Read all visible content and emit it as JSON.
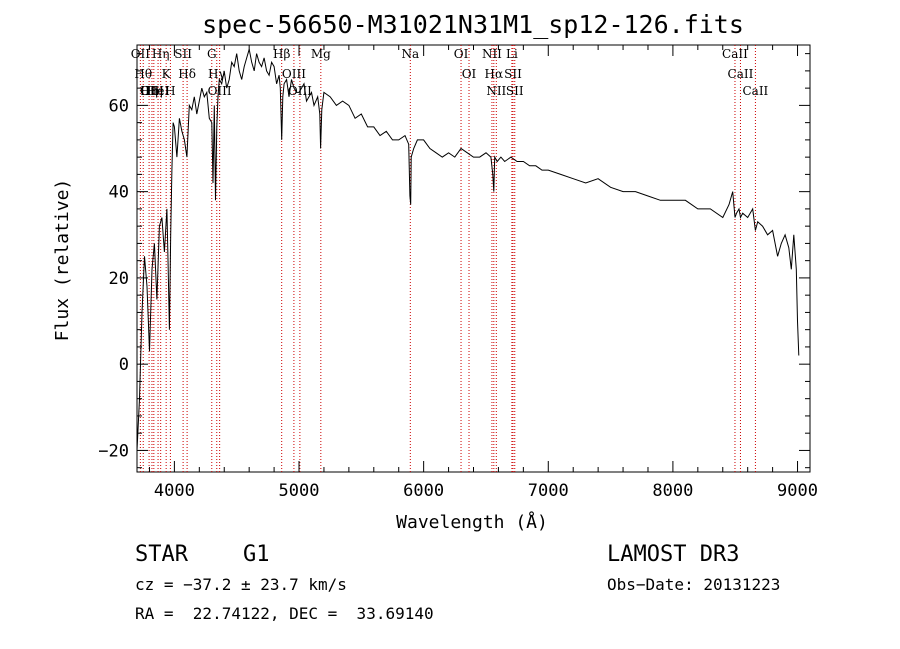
{
  "chart_data": {
    "type": "line",
    "title": "spec-56650-M31021N31M1_sp12-126.fits",
    "xlabel": "Wavelength (Å)",
    "ylabel": "Flux (relative)",
    "xlim": [
      3700,
      9100
    ],
    "ylim": [
      -25,
      74
    ],
    "xticks": [
      4000,
      5000,
      6000,
      7000,
      8000,
      9000
    ],
    "yticks": [
      -20,
      0,
      20,
      40,
      60
    ],
    "grid": false,
    "series": [
      {
        "x": [
          3700,
          3720,
          3740,
          3760,
          3780,
          3800,
          3820,
          3840,
          3860,
          3880,
          3900,
          3920,
          3940,
          3950,
          3960,
          3970,
          3980,
          3990,
          4000,
          4020,
          4040,
          4060,
          4080,
          4100,
          4120,
          4140,
          4160,
          4180,
          4200,
          4220,
          4240,
          4260,
          4280,
          4300,
          4310,
          4320,
          4330,
          4340,
          4350,
          4360,
          4380,
          4400,
          4420,
          4440,
          4460,
          4480,
          4500,
          4520,
          4540,
          4560,
          4580,
          4600,
          4620,
          4640,
          4660,
          4680,
          4700,
          4720,
          4740,
          4760,
          4780,
          4800,
          4820,
          4840,
          4850,
          4861,
          4870,
          4880,
          4900,
          4920,
          4940,
          4960,
          4980,
          5000,
          5020,
          5040,
          5060,
          5080,
          5100,
          5120,
          5150,
          5167,
          5173,
          5183,
          5200,
          5250,
          5300,
          5350,
          5400,
          5450,
          5500,
          5550,
          5600,
          5650,
          5700,
          5750,
          5800,
          5850,
          5880,
          5890,
          5896,
          5900,
          5920,
          5950,
          6000,
          6050,
          6100,
          6150,
          6200,
          6250,
          6300,
          6350,
          6400,
          6450,
          6500,
          6540,
          6555,
          6563,
          6570,
          6590,
          6620,
          6650,
          6700,
          6750,
          6800,
          6850,
          6900,
          6950,
          7000,
          7100,
          7200,
          7300,
          7400,
          7500,
          7600,
          7700,
          7800,
          7900,
          8000,
          8100,
          8200,
          8300,
          8400,
          8450,
          8480,
          8498,
          8510,
          8530,
          8542,
          8560,
          8600,
          8640,
          8662,
          8680,
          8720,
          8760,
          8800,
          8840,
          8870,
          8900,
          8930,
          8950,
          8970,
          8990,
          9000,
          9010
        ],
        "values": [
          -20,
          -8,
          12,
          25,
          18,
          3,
          22,
          28,
          15,
          32,
          34,
          26,
          36,
          22,
          8,
          30,
          45,
          56,
          55,
          48,
          57,
          54,
          52,
          48,
          60,
          59,
          62,
          58,
          61,
          64,
          62,
          63,
          57,
          56,
          42,
          60,
          38,
          55,
          62,
          66,
          65,
          68,
          64,
          66,
          70,
          69,
          72,
          68,
          66,
          69,
          71,
          73,
          70,
          68,
          72,
          70,
          69,
          71,
          68,
          67,
          70,
          69,
          65,
          67,
          64,
          52,
          62,
          65,
          66,
          62,
          66,
          64,
          63,
          63,
          64,
          65,
          61,
          62,
          63,
          60,
          62,
          58,
          50,
          59,
          63,
          62,
          60,
          61,
          60,
          57,
          58,
          55,
          55,
          53,
          54,
          52,
          52,
          53,
          51,
          39,
          37,
          48,
          50,
          52,
          52,
          50,
          49,
          48,
          49,
          48,
          50,
          49,
          48,
          48,
          49,
          48,
          44,
          40,
          48,
          47,
          48,
          47,
          48,
          47,
          47,
          46,
          46,
          45,
          45,
          44,
          43,
          42,
          43,
          41,
          40,
          40,
          39,
          38,
          38,
          38,
          36,
          36,
          34,
          37,
          40,
          34,
          35,
          36,
          34,
          35,
          34,
          36,
          31,
          33,
          32,
          30,
          31,
          25,
          28,
          30,
          27,
          22,
          30,
          22,
          10,
          2
        ]
      }
    ],
    "lines": [
      {
        "x": 3727,
        "label": "OII"
      },
      {
        "x": 3750,
        "label": "Hθ"
      },
      {
        "x": 3797,
        "label": "Hη"
      },
      {
        "x": 3820,
        "label": "OIII"
      },
      {
        "x": 3835,
        "label": "Hη"
      },
      {
        "x": 3869,
        "label": "HeI"
      },
      {
        "x": 3890,
        "label": "Hη"
      },
      {
        "x": 3934,
        "label": "K"
      },
      {
        "x": 3968,
        "label": "H"
      },
      {
        "x": 4070,
        "label": "SII"
      },
      {
        "x": 4102,
        "label": "Hδ"
      },
      {
        "x": 4300,
        "label": "G"
      },
      {
        "x": 4340,
        "label": "Hγ"
      },
      {
        "x": 4363,
        "label": "OIII"
      },
      {
        "x": 4861,
        "label": "Hβ"
      },
      {
        "x": 4959,
        "label": "OIII"
      },
      {
        "x": 5007,
        "label": "OIII"
      },
      {
        "x": 5175,
        "label": "Mg"
      },
      {
        "x": 5893,
        "label": "Na"
      },
      {
        "x": 6300,
        "label": "OI"
      },
      {
        "x": 6364,
        "label": "OI"
      },
      {
        "x": 6548,
        "label": "NII"
      },
      {
        "x": 6563,
        "label": "Hα"
      },
      {
        "x": 6583,
        "label": "NII"
      },
      {
        "x": 6708,
        "label": "Li"
      },
      {
        "x": 6717,
        "label": "SII"
      },
      {
        "x": 6731,
        "label": "SII"
      },
      {
        "x": 8498,
        "label": "CaII"
      },
      {
        "x": 8542,
        "label": "CaII"
      },
      {
        "x": 8662,
        "label": "CaII"
      }
    ]
  },
  "info": {
    "object_class": "STAR",
    "subclass": "G1",
    "survey": "LAMOST DR3",
    "cz": "cz = −37.2 ± 23.7 km/s",
    "obs_date": "Obs−Date: 20131223",
    "coords": "RA =  22.74122, DEC =  33.69140"
  }
}
